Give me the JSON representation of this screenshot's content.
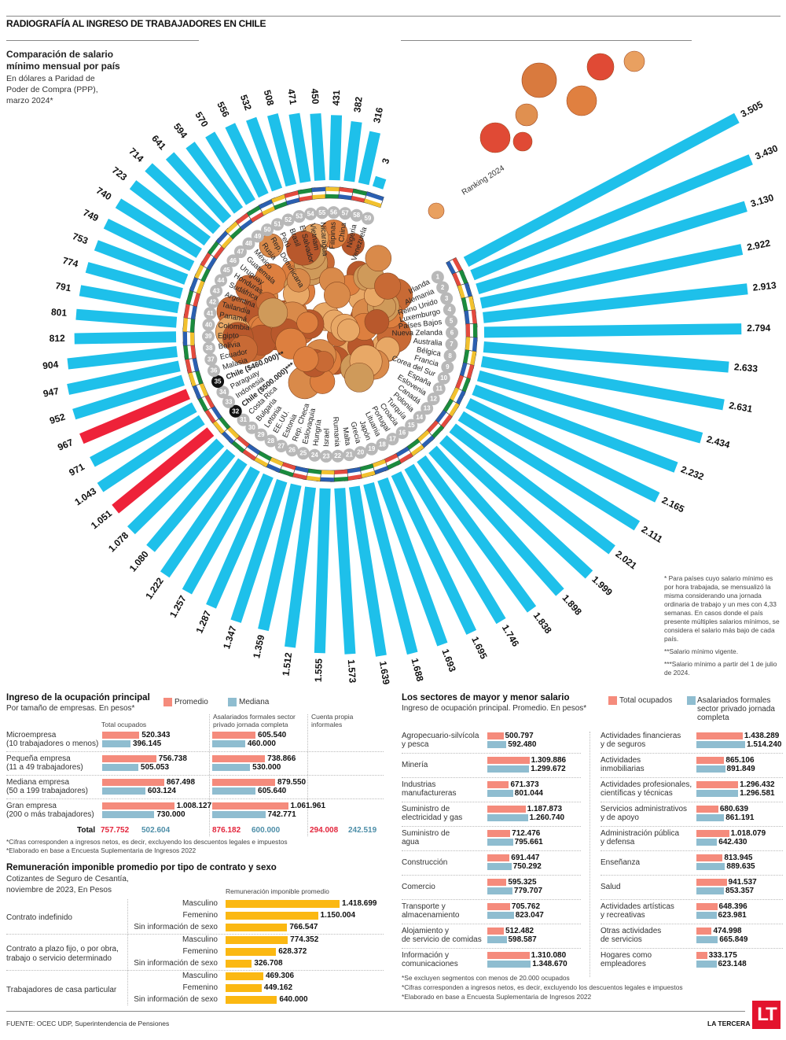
{
  "header": {
    "title": "RADIOGRAFÍA AL INGRESO DE TRABAJADORES EN CHILE",
    "subtitle": "Comparación de salario mínimo mensual por país",
    "description": "En dólares a Paridad de Poder de Compra (PPP), marzo 2024*",
    "ranking_label": "Ranking 2024"
  },
  "chart_data": [
    {
      "type": "bar",
      "layout": "radial",
      "title": "Comparación de salario mínimo mensual por país",
      "subtitle": "En dólares a Paridad de Poder de Compra (PPP), marzo 2024*",
      "unit": "USD PPP",
      "highlight_color": "#ee2239",
      "bar_color": "#1ec0ea",
      "countries": [
        {
          "rank": 1,
          "name": "Irlanda",
          "value": "3.505",
          "v": 3505
        },
        {
          "rank": 2,
          "name": "Alemania",
          "value": "3.430",
          "v": 3430
        },
        {
          "rank": 3,
          "name": "Reino Unido",
          "value": "3.130",
          "v": 3130
        },
        {
          "rank": 4,
          "name": "Luxemburgo",
          "value": "2.922",
          "v": 2922
        },
        {
          "rank": 5,
          "name": "Países Bajos",
          "value": "2.913",
          "v": 2913
        },
        {
          "rank": 6,
          "name": "Nueva Zelanda",
          "value": "2.794",
          "v": 2794
        },
        {
          "rank": 7,
          "name": "Australia",
          "value": "2.633",
          "v": 2633
        },
        {
          "rank": 8,
          "name": "Bélgica",
          "value": "2.631",
          "v": 2631
        },
        {
          "rank": 9,
          "name": "Francia",
          "value": "2.434",
          "v": 2434
        },
        {
          "rank": 10,
          "name": "Corea del Sur",
          "value": "2.232",
          "v": 2232
        },
        {
          "rank": 11,
          "name": "España",
          "value": "2.165",
          "v": 2165
        },
        {
          "rank": 12,
          "name": "Eslovenia",
          "value": "2.111",
          "v": 2111
        },
        {
          "rank": 13,
          "name": "Canadá",
          "value": "2.021",
          "v": 2021
        },
        {
          "rank": 14,
          "name": "Polonia",
          "value": "1.999",
          "v": 1999
        },
        {
          "rank": 15,
          "name": "Turquía",
          "value": "1.898",
          "v": 1898
        },
        {
          "rank": 16,
          "name": "Croacia",
          "value": "1.838",
          "v": 1838
        },
        {
          "rank": 17,
          "name": "Portugal",
          "value": "1.746",
          "v": 1746
        },
        {
          "rank": 18,
          "name": "Lituania",
          "value": "1.695",
          "v": 1695
        },
        {
          "rank": 19,
          "name": "Japón",
          "value": "1.693",
          "v": 1693
        },
        {
          "rank": 20,
          "name": "Grecia",
          "value": "1.688",
          "v": 1688
        },
        {
          "rank": 21,
          "name": "Malta",
          "value": "1.639",
          "v": 1639
        },
        {
          "rank": 22,
          "name": "Rumania",
          "value": "1.573",
          "v": 1573
        },
        {
          "rank": 23,
          "name": "Israel",
          "value": "1.555",
          "v": 1555
        },
        {
          "rank": 24,
          "name": "Hungría",
          "value": "1.512",
          "v": 1512
        },
        {
          "rank": 25,
          "name": "Eslovaquia",
          "value": "1.359",
          "v": 1359
        },
        {
          "rank": 26,
          "name": "Rep. Checa",
          "value": "1.347",
          "v": 1347
        },
        {
          "rank": 27,
          "name": "Estonia",
          "value": "1.287",
          "v": 1287
        },
        {
          "rank": 28,
          "name": "EE.UU.",
          "value": "1.257",
          "v": 1257
        },
        {
          "rank": 29,
          "name": "Letonia",
          "value": "1.222",
          "v": 1222
        },
        {
          "rank": 30,
          "name": "Bulgaria",
          "value": "1.080",
          "v": 1080
        },
        {
          "rank": 31,
          "name": "Costa Rica",
          "value": "1.078",
          "v": 1078
        },
        {
          "rank": 32,
          "name": "Chile ($500.000)***",
          "value": "1.051",
          "v": 1051,
          "highlight": true
        },
        {
          "rank": 33,
          "name": "Indonesia",
          "value": "1.043",
          "v": 1043
        },
        {
          "rank": 34,
          "name": "Paraguay",
          "value": "971",
          "v": 971
        },
        {
          "rank": 35,
          "name": "Chile ($460.000)**",
          "value": "967",
          "v": 967,
          "highlight": true
        },
        {
          "rank": 36,
          "name": "Malasia",
          "value": "952",
          "v": 952
        },
        {
          "rank": 37,
          "name": "Ecuador",
          "value": "947",
          "v": 947
        },
        {
          "rank": 38,
          "name": "Bolivia",
          "value": "904",
          "v": 904
        },
        {
          "rank": 39,
          "name": "Egipto",
          "value": "812",
          "v": 812
        },
        {
          "rank": 40,
          "name": "Colombia",
          "value": "801",
          "v": 801
        },
        {
          "rank": 41,
          "name": "Panamá",
          "value": "791",
          "v": 791
        },
        {
          "rank": 42,
          "name": "Tailandia",
          "value": "774",
          "v": 774
        },
        {
          "rank": 43,
          "name": "Argentina",
          "value": "753",
          "v": 753
        },
        {
          "rank": 44,
          "name": "Sudáfrica",
          "value": "749",
          "v": 749
        },
        {
          "rank": 45,
          "name": "Honduras",
          "value": "740",
          "v": 740
        },
        {
          "rank": 46,
          "name": "Uruguay",
          "value": "723",
          "v": 723
        },
        {
          "rank": 47,
          "name": "Guatemala",
          "value": "714",
          "v": 714
        },
        {
          "rank": 48,
          "name": "México",
          "value": "641",
          "v": 641
        },
        {
          "rank": 49,
          "name": "Rusia",
          "value": "594",
          "v": 594
        },
        {
          "rank": 50,
          "name": "Rep. Dominicana",
          "value": "570",
          "v": 570
        },
        {
          "rank": 51,
          "name": "Perú",
          "value": "556",
          "v": 556
        },
        {
          "rank": 52,
          "name": "Brasil",
          "value": "532",
          "v": 532
        },
        {
          "rank": 53,
          "name": "El Salvador",
          "value": "508",
          "v": 508
        },
        {
          "rank": 54,
          "name": "Vietnam",
          "value": "471",
          "v": 471
        },
        {
          "rank": 55,
          "name": "Nicaragua",
          "value": "450",
          "v": 450
        },
        {
          "rank": 56,
          "name": "Filipinas",
          "value": "431",
          "v": 431
        },
        {
          "rank": 57,
          "name": "China",
          "value": "382",
          "v": 382
        },
        {
          "rank": 58,
          "name": "Nigeria",
          "value": "316",
          "v": 316
        },
        {
          "rank": 59,
          "name": "Venezuela",
          "value": "3",
          "v": 3
        }
      ]
    },
    {
      "type": "bar",
      "title": "Ingreso de la ocupación principal",
      "subtitle": "Por tamaño de empresas. En pesos*",
      "legend": [
        {
          "name": "Promedio",
          "color": "#f58b7c"
        },
        {
          "name": "Mediana",
          "color": "#8fbdd0"
        }
      ],
      "columns": [
        "Total ocupados",
        "Asalariados formales sector privado jornada completa",
        "Cuenta propia informales"
      ],
      "rows": [
        {
          "label1": "Microempresa",
          "label2": "(10 trabajadores o menos)",
          "total_prom": "520.343",
          "total_prom_v": 520343,
          "total_med": "396.145",
          "total_med_v": 396145,
          "asal_prom": "605.540",
          "asal_prom_v": 605540,
          "asal_med": "460.000",
          "asal_med_v": 460000
        },
        {
          "label1": "Pequeña empresa",
          "label2": "(11 a 49 trabajadores)",
          "total_prom": "756.738",
          "total_prom_v": 756738,
          "total_med": "505.053",
          "total_med_v": 505053,
          "asal_prom": "738.866",
          "asal_prom_v": 738866,
          "asal_med": "530.000",
          "asal_med_v": 530000
        },
        {
          "label1": "Mediana empresa",
          "label2": "(50 a 199 trabajadores)",
          "total_prom": "867.498",
          "total_prom_v": 867498,
          "total_med": "603.124",
          "total_med_v": 603124,
          "asal_prom": "879.550",
          "asal_prom_v": 879550,
          "asal_med": "605.640",
          "asal_med_v": 605640
        },
        {
          "label1": "Gran empresa",
          "label2": "(200 o más trabajadores)",
          "total_prom": "1.008.127",
          "total_prom_v": 1008127,
          "total_med": "730.000",
          "total_med_v": 730000,
          "asal_prom": "1.061.961",
          "asal_prom_v": 1061961,
          "asal_med": "742.771",
          "asal_med_v": 742771
        }
      ],
      "total_label": "Total",
      "totals": {
        "total_prom": "757.752",
        "total_med": "502.604",
        "asal_prom": "876.182",
        "asal_med": "600.000",
        "cp_prom": "294.008",
        "cp_med": "242.519"
      },
      "notes": [
        "*Cifras corresponden a ingresos netos, es decir, excluyendo los descuentos legales e impuestos",
        "*Elaborado en base a Encuesta Suplementaria de Ingresos 2022"
      ]
    },
    {
      "type": "bar",
      "title": "Remuneración imponible promedio por tipo de contrato y sexo",
      "subtitle_line1": "Cotizantes de Seguro de Cesantía,",
      "subtitle_line2": "noviembre de 2023, En Pesos",
      "column_header": "Remuneración imponible promedio",
      "bar_color": "#fbb812",
      "groups": [
        {
          "label": "Contrato indefinido",
          "items": [
            {
              "sex": "Masculino",
              "value": "1.418.699",
              "v": 1418699
            },
            {
              "sex": "Femenino",
              "value": "1.150.004",
              "v": 1150004
            },
            {
              "sex": "Sin información de sexo",
              "value": "766.547",
              "v": 766547
            }
          ]
        },
        {
          "label": "Contrato a plazo fijo, o por obra, trabajo o servicio determinado",
          "label_line1": "Contrato a plazo fijo, o por obra,",
          "label_line2": "trabajo o servicio determinado",
          "items": [
            {
              "sex": "Masculino",
              "value": "774.352",
              "v": 774352
            },
            {
              "sex": "Femenino",
              "value": "628.372",
              "v": 628372
            },
            {
              "sex": "Sin información de sexo",
              "value": "326.708",
              "v": 326708
            }
          ]
        },
        {
          "label": "Trabajadores de casa particular",
          "items": [
            {
              "sex": "Masculino",
              "value": "469.306",
              "v": 469306
            },
            {
              "sex": "Femenino",
              "value": "449.162",
              "v": 449162
            },
            {
              "sex": "Sin información de sexo",
              "value": "640.000",
              "v": 640000
            }
          ]
        }
      ]
    },
    {
      "type": "bar",
      "title": "Los sectores de mayor y menor salario",
      "subtitle": "Ingreso de ocupación principal.  Promedio. En pesos*",
      "legend": [
        {
          "name": "Total ocupados",
          "color": "#f58b7c"
        },
        {
          "name": "Asalariados formales sector privado jornada completa",
          "color": "#8fbdd0"
        }
      ],
      "legend2_line1": "Asalariados formales",
      "legend2_line2": "sector privado jornada",
      "legend2_line3": "completa",
      "left": [
        {
          "l1": "Agropecuario-silvícola",
          "l2": "y pesca",
          "a": "500.797",
          "av": 500797,
          "b": "592.480",
          "bv": 592480
        },
        {
          "l1": "Minería",
          "l2": "",
          "a": "1.309.886",
          "av": 1309886,
          "b": "1.299.672",
          "bv": 1299672
        },
        {
          "l1": "Industrias",
          "l2": "manufactureras",
          "a": "671.373",
          "av": 671373,
          "b": "801.044",
          "bv": 801044
        },
        {
          "l1": "Suministro de",
          "l2": "electricidad y gas",
          "a": "1.187.873",
          "av": 1187873,
          "b": "1.260.740",
          "bv": 1260740
        },
        {
          "l1": "Suministro de",
          "l2": "agua",
          "a": "712.476",
          "av": 712476,
          "b": "795.661",
          "bv": 795661
        },
        {
          "l1": "Construcción",
          "l2": "",
          "a": "691.447",
          "av": 691447,
          "b": "750.292",
          "bv": 750292
        },
        {
          "l1": "Comercio",
          "l2": "",
          "a": "595.325",
          "av": 595325,
          "b": "779.707",
          "bv": 779707
        },
        {
          "l1": "Transporte y",
          "l2": "almacenamiento",
          "a": "705.762",
          "av": 705762,
          "b": "823.047",
          "bv": 823047
        },
        {
          "l1": "Alojamiento y",
          "l2": "de servicio de comidas",
          "a": "512.482",
          "av": 512482,
          "b": "598.587",
          "bv": 598587
        },
        {
          "l1": "Información y",
          "l2": "comunicaciones",
          "a": "1.310.080",
          "av": 1310080,
          "b": "1.348.670",
          "bv": 1348670
        }
      ],
      "right": [
        {
          "l1": "Actividades financieras",
          "l2": "y de seguros",
          "a": "1.438.289",
          "av": 1438289,
          "b": "1.514.240",
          "bv": 1514240
        },
        {
          "l1": "Actividades",
          "l2": "inmobiliarias",
          "a": "865.106",
          "av": 865106,
          "b": "891.849",
          "bv": 891849
        },
        {
          "l1": "Actividades profesionales,",
          "l2": "científicas y técnicas",
          "a": "1.296.432",
          "av": 1296432,
          "b": "1.296.581",
          "bv": 1296581
        },
        {
          "l1": "Servicios administrativos",
          "l2": "y de apoyo",
          "a": "680.639",
          "av": 680639,
          "b": "861.191",
          "bv": 861191
        },
        {
          "l1": "Administración pública",
          "l2": "y defensa",
          "a": "1.018.079",
          "av": 1018079,
          "b": "642.430",
          "bv": 642430
        },
        {
          "l1": "Enseñanza",
          "l2": "",
          "a": "813.945",
          "av": 813945,
          "b": "889.635",
          "bv": 889635
        },
        {
          "l1": "Salud",
          "l2": "",
          "a": "941.537",
          "av": 941537,
          "b": "853.357",
          "bv": 853357
        },
        {
          "l1": "Actividades artísticas",
          "l2": "y recreativas",
          "a": "648.396",
          "av": 648396,
          "b": "623.981",
          "bv": 623981
        },
        {
          "l1": "Otras actividades",
          "l2": "de servicios",
          "a": "474.998",
          "av": 474998,
          "b": "665.849",
          "bv": 665849
        },
        {
          "l1": "Hogares como",
          "l2": "empleadores",
          "a": "333.175",
          "av": 333175,
          "b": "623.148",
          "bv": 623148
        }
      ],
      "notes": [
        "*Se excluyen segmentos con menos de 20.000 ocupados",
        "*Cifras corresponden a ingresos netos, es decir, excluyendo los descuentos legales e impuestos",
        "*Elaborado en base a Encuesta Suplementaria de Ingresos 2022"
      ]
    }
  ],
  "footnotes": {
    "f1": "* Para países cuyo salario mínimo es por hora trabajada, se mensualizó la misma considerando una jornada ordinaria de trabajo y un mes con 4,33 semanas. En casos donde el país presente múltiples salarios mínimos, se considera el salario más bajo de cada país.",
    "f2": "**Salario mínimo vigente.",
    "f3": "***Salario mínimo a partir del 1 de julio de 2024."
  },
  "footer": {
    "source": "FUENTE: OCEC UDP, Superintendencia de Pensiones",
    "brand": "LA TERCERA",
    "logo": "LT"
  }
}
